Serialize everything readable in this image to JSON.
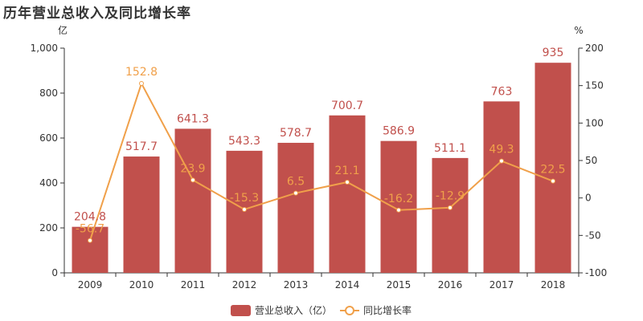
{
  "chart_data": {
    "type": "bar+line",
    "title": "历年营业总收入及同比增长率",
    "categories": [
      "2009",
      "2010",
      "2011",
      "2012",
      "2013",
      "2014",
      "2015",
      "2016",
      "2017",
      "2018"
    ],
    "series": [
      {
        "name": "营业总收入（亿）",
        "type": "bar",
        "axis": "left",
        "values": [
          204.8,
          517.7,
          641.3,
          543.3,
          578.7,
          700.7,
          586.9,
          511.1,
          763,
          935
        ],
        "labels": [
          "204.8",
          "517.7",
          "641.3",
          "543.3",
          "578.7",
          "700.7",
          "586.9",
          "511.1",
          "763",
          "935"
        ]
      },
      {
        "name": "同比增长率",
        "type": "line",
        "axis": "right",
        "values": [
          -56.7,
          152.8,
          23.9,
          -15.3,
          6.5,
          21.1,
          -16.2,
          -12.9,
          49.3,
          22.5
        ],
        "labels": [
          "-56.7",
          "152.8",
          "23.9",
          "-15.3",
          "6.5",
          "21.1",
          "-16.2",
          "-12.9",
          "49.3",
          "22.5"
        ]
      }
    ],
    "y_left": {
      "unit": "亿",
      "min": 0,
      "max": 1000,
      "ticks": [
        0,
        200,
        400,
        600,
        800,
        1000
      ],
      "tick_labels": [
        "0",
        "200",
        "400",
        "600",
        "800",
        "1,000"
      ]
    },
    "y_right": {
      "unit": "%",
      "min": -100,
      "max": 200,
      "ticks": [
        -100,
        -50,
        0,
        50,
        100,
        150,
        200
      ],
      "tick_labels": [
        "-100",
        "-50",
        "0",
        "50",
        "100",
        "150",
        "200"
      ]
    },
    "legend_position": "bottom-center",
    "colors": {
      "bar": "#c1504c",
      "line": "#f0a04a",
      "axis": "#333333"
    }
  }
}
